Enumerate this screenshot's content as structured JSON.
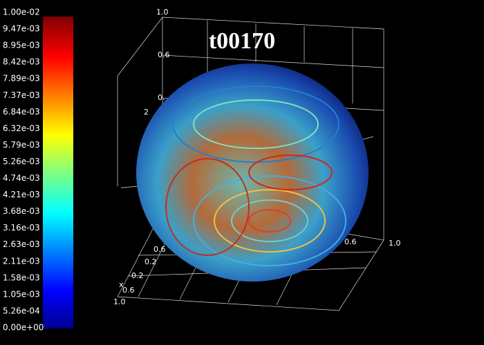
{
  "title": "t00170",
  "colorbar": {
    "labels": [
      "1.00e-02",
      "9.47e-03",
      "8.95e-03",
      "8.42e-03",
      "7.89e-03",
      "7.37e-03",
      "6.84e-03",
      "6.32e-03",
      "5.79e-03",
      "5.26e-03",
      "4.74e-03",
      "4.21e-03",
      "3.68e-03",
      "3.16e-03",
      "2.63e-03",
      "2.11e-03",
      "1.58e-03",
      "1.05e-03",
      "5.26e-04",
      "0.00e+00"
    ]
  },
  "axis_labels": [
    "1.0",
    "0.6",
    "0.",
    "2",
    "0.6",
    "1.0",
    "0.6",
    "0.2",
    "x",
    "0.2",
    "0.6",
    "1.0"
  ]
}
